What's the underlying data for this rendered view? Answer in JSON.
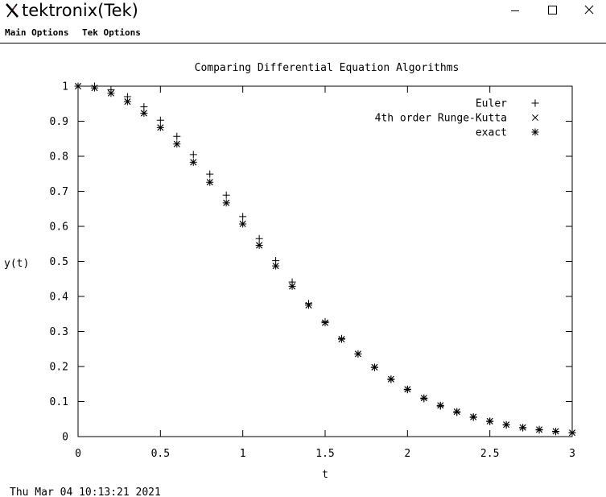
{
  "window": {
    "title": "tektronix(Tek)",
    "app_icon": "x-icon",
    "controls": [
      "minimize-icon",
      "maximize-icon",
      "close-icon"
    ]
  },
  "menu": {
    "items": [
      {
        "label": "Main Options"
      },
      {
        "label": "Tek Options"
      }
    ]
  },
  "timestamp": "Thu Mar 04 10:13:21 2021",
  "colors": {
    "ink": "#000000",
    "background": "#ffffff"
  },
  "chart_data": {
    "type": "scatter",
    "title": "Comparing Differential Equation Algorithms",
    "xlabel": "t",
    "ylabel": "y(t)",
    "xlim": [
      0,
      3
    ],
    "ylim": [
      0,
      1
    ],
    "xticks": [
      "0",
      "0.5",
      "1",
      "1.5",
      "2",
      "2.5",
      "3"
    ],
    "yticks": [
      "0",
      "0.1",
      "0.2",
      "0.3",
      "0.4",
      "0.5",
      "0.6",
      "0.7",
      "0.8",
      "0.9",
      "1"
    ],
    "grid": false,
    "legend_position": "top-right",
    "x": [
      0,
      0.1,
      0.2,
      0.3,
      0.4,
      0.5,
      0.6,
      0.7,
      0.8,
      0.9,
      1.0,
      1.1,
      1.2,
      1.3,
      1.4,
      1.5,
      1.6,
      1.7,
      1.8,
      1.9,
      2.0,
      2.1,
      2.2,
      2.3,
      2.4,
      2.5,
      2.6,
      2.7,
      2.8,
      2.9,
      3.0
    ],
    "series": [
      {
        "name": "Euler",
        "marker": "plus",
        "values": [
          1.0,
          1.0,
          0.99,
          0.97,
          0.941,
          0.903,
          0.857,
          0.805,
          0.749,
          0.689,
          0.628,
          0.565,
          0.502,
          0.441,
          0.38,
          0.328,
          0.28,
          0.236,
          0.197,
          0.163,
          0.134,
          0.108,
          0.087,
          0.069,
          0.055,
          0.043,
          0.033,
          0.025,
          0.019,
          0.014,
          0.011
        ]
      },
      {
        "name": "4th order Runge-Kutta",
        "marker": "cross",
        "values": [
          1.0,
          0.995,
          0.98,
          0.956,
          0.923,
          0.882,
          0.835,
          0.783,
          0.726,
          0.667,
          0.607,
          0.546,
          0.487,
          0.429,
          0.375,
          0.325,
          0.278,
          0.236,
          0.198,
          0.164,
          0.135,
          0.11,
          0.089,
          0.071,
          0.056,
          0.044,
          0.034,
          0.026,
          0.02,
          0.015,
          0.011
        ]
      },
      {
        "name": "exact",
        "marker": "star",
        "values": [
          1.0,
          0.995,
          0.98,
          0.956,
          0.923,
          0.882,
          0.835,
          0.783,
          0.726,
          0.667,
          0.607,
          0.546,
          0.487,
          0.429,
          0.375,
          0.325,
          0.278,
          0.236,
          0.198,
          0.164,
          0.135,
          0.11,
          0.089,
          0.071,
          0.056,
          0.044,
          0.034,
          0.026,
          0.02,
          0.015,
          0.011
        ]
      }
    ]
  }
}
